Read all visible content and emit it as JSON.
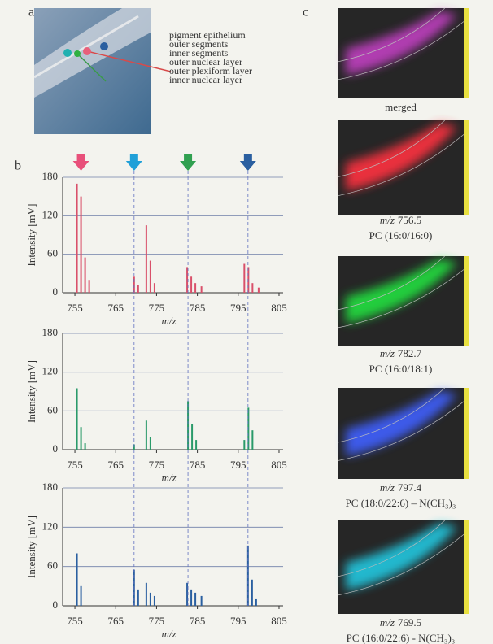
{
  "panel_labels": [
    "a",
    "b",
    "c"
  ],
  "retina_layers": [
    {
      "label": "pigment epithelium",
      "color": "#1f9a9a"
    },
    {
      "label": "outer segments",
      "color": "#1f9a9a"
    },
    {
      "label": "inner segments",
      "color": "#e0607a"
    },
    {
      "label": "outer nuclear layer",
      "color": "#d84a4a"
    },
    {
      "label": "outer plexiform layer",
      "color": "#3a9a4a"
    },
    {
      "label": "inner nuclear layer",
      "color": "#1f9a9a"
    }
  ],
  "images": [
    {
      "caption": "merged",
      "tint": "#c040c0"
    },
    {
      "mz_label": "m/z",
      "mz": "756.5",
      "compound": "PC (16:0/16:0)",
      "tint": "#ff3040"
    },
    {
      "mz_label": "m/z",
      "mz": "782.7",
      "compound": "PC (16:0/18:1)",
      "tint": "#20e040"
    },
    {
      "mz_label": "m/z",
      "mz": "797.4",
      "compound": "PC (18:0/22:6) – N(CH₃)₃",
      "tint": "#4060ff"
    },
    {
      "mz_label": "m/z",
      "mz": "769.5",
      "compound": "PC (16:0/22:6) - N(CH₃)₃",
      "tint": "#20c8e0"
    }
  ],
  "chart_data": [
    {
      "type": "stick",
      "color": "#d9506a",
      "xlabel": "m/z",
      "ylabel": "Intensity [mV]",
      "xlim": [
        752,
        806
      ],
      "ylim": [
        0,
        180
      ],
      "xticks": [
        755,
        765,
        775,
        785,
        795,
        805
      ],
      "yticks": [
        0,
        60,
        120,
        180
      ],
      "grid": true,
      "x": [
        755.5,
        756.5,
        757.5,
        758.5,
        769.5,
        770.5,
        772.5,
        773.5,
        774.5,
        782.5,
        783.5,
        784.5,
        786,
        796.5,
        797.5,
        798.5,
        800
      ],
      "values": [
        170,
        150,
        55,
        20,
        25,
        12,
        105,
        50,
        15,
        40,
        25,
        15,
        10,
        45,
        40,
        15,
        8
      ],
      "markers": {
        "x": [
          756.5,
          769.5,
          782.7,
          797.4
        ],
        "colors": [
          "#e8507a",
          "#20a0d8",
          "#30a050",
          "#2a5fa0"
        ]
      }
    },
    {
      "type": "stick",
      "color": "#2a9a6a",
      "xlabel": "m/z",
      "ylabel": "Intensity [mV]",
      "xlim": [
        752,
        806
      ],
      "ylim": [
        0,
        180
      ],
      "xticks": [
        755,
        765,
        775,
        785,
        795,
        805
      ],
      "yticks": [
        0,
        60,
        120,
        180
      ],
      "grid": true,
      "x": [
        755.5,
        756.5,
        757.5,
        769.5,
        772.5,
        773.5,
        782.7,
        783.7,
        784.7,
        796.5,
        797.5,
        798.5
      ],
      "values": [
        95,
        35,
        10,
        8,
        45,
        20,
        75,
        40,
        15,
        15,
        65,
        30
      ]
    },
    {
      "type": "stick",
      "color": "#2a5fa0",
      "xlabel": "m/z",
      "ylabel": "Intensity [mV]",
      "xlim": [
        752,
        806
      ],
      "ylim": [
        0,
        180
      ],
      "xticks": [
        755,
        765,
        775,
        785,
        795,
        805
      ],
      "yticks": [
        0,
        60,
        120,
        180
      ],
      "grid": true,
      "x": [
        755.5,
        756.5,
        769.5,
        770.5,
        772.5,
        773.5,
        774.5,
        782.5,
        783.5,
        784.5,
        786,
        797.4,
        798.4,
        799.4
      ],
      "values": [
        80,
        30,
        55,
        25,
        35,
        20,
        15,
        35,
        25,
        20,
        15,
        92,
        40,
        10
      ]
    }
  ]
}
